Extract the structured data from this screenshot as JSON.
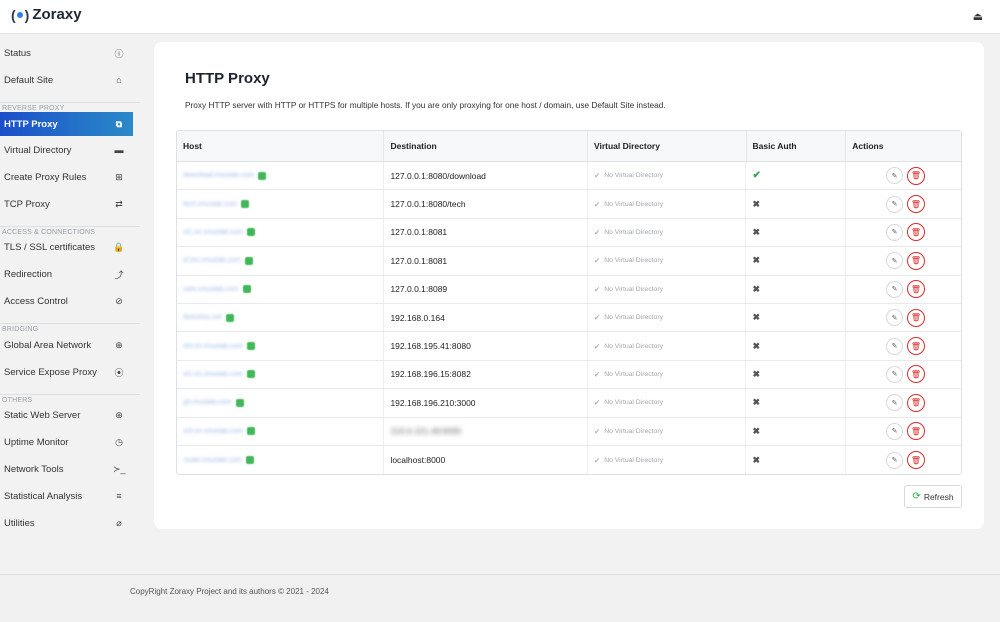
{
  "app": {
    "name": "Zoraxy",
    "logo_glyph": "(•)"
  },
  "header": {
    "logout_icon": "sign-out-icon"
  },
  "sidebar": {
    "items": [
      {
        "label": "Status",
        "icon": "ⓘ"
      },
      {
        "label": "Default Site",
        "icon": "⌂"
      },
      {
        "section": "REVERSE PROXY"
      },
      {
        "label": "HTTP Proxy",
        "icon": "⧉",
        "active": true
      },
      {
        "label": "Virtual Directory",
        "icon": "▬"
      },
      {
        "label": "Create Proxy Rules",
        "icon": "⊞"
      },
      {
        "label": "TCP Proxy",
        "icon": "⇄"
      },
      {
        "section": "ACCESS & CONNECTIONS"
      },
      {
        "label": "TLS / SSL certificates",
        "icon": "🔒"
      },
      {
        "label": "Redirection",
        "icon": "⤴"
      },
      {
        "label": "Access Control",
        "icon": "⊘"
      },
      {
        "section": "BRIDGING"
      },
      {
        "label": "Global Area Network",
        "icon": "⊕"
      },
      {
        "label": "Service Expose Proxy",
        "icon": "⦿"
      },
      {
        "section": "OTHERS"
      },
      {
        "label": "Static Web Server",
        "icon": "⊕"
      },
      {
        "label": "Uptime Monitor",
        "icon": "◷"
      },
      {
        "label": "Network Tools",
        "icon": "≻_"
      },
      {
        "label": "Statistical Analysis",
        "icon": "≡"
      },
      {
        "label": "Utilities",
        "icon": "⌀"
      }
    ]
  },
  "main": {
    "title": "HTTP Proxy",
    "description": "Proxy HTTP server with HTTP or HTTPS for multiple hosts. If you are only proxying for one host / domain, use Default Site instead.",
    "table": {
      "headers": [
        "Host",
        "Destination",
        "Virtual Directory",
        "Basic Auth",
        "Actions"
      ],
      "no_vdir_label": "No Virtual Directory",
      "rows": [
        {
          "host": "download.imuslab.com",
          "destination": "127.0.0.1:8080/download",
          "dest_blurred": false,
          "basic_auth": true
        },
        {
          "host": "tech.imuslab.com",
          "destination": "127.0.0.1:8080/tech",
          "dest_blurred": false,
          "basic_auth": false
        },
        {
          "host": "sf1.on.imuslab.com",
          "destination": "127.0.0.1:8081",
          "dest_blurred": false,
          "basic_auth": false
        },
        {
          "host": "sf.tes.imuslab.com",
          "destination": "127.0.0.1:8081",
          "dest_blurred": false,
          "basic_auth": false
        },
        {
          "host": "sshc.imuslab.com",
          "destination": "127.0.0.1:8089",
          "dest_blurred": false,
          "basic_auth": false
        },
        {
          "host": "Aireshos.net",
          "destination": "192.168.0.164",
          "dest_blurred": false,
          "basic_auth": false
        },
        {
          "host": "sf3.on.imuslab.com",
          "destination": "192.168.195.41:8080",
          "dest_blurred": false,
          "basic_auth": false
        },
        {
          "host": "sf2.on.imuslab.com",
          "destination": "192.168.196.15:8082",
          "dest_blurred": false,
          "basic_auth": false
        },
        {
          "host": "git.imuslab.com",
          "destination": "192.168.196.210:3000",
          "dest_blurred": false,
          "basic_auth": false
        },
        {
          "host": "sf3.on.imuslab.com",
          "destination": "216.6.101.48:9095",
          "dest_blurred": true,
          "basic_auth": false
        },
        {
          "host": "router.imuslab.com",
          "destination": "localhost:8000",
          "dest_blurred": false,
          "basic_auth": false
        }
      ]
    },
    "refresh_label": "Refresh"
  },
  "footer": {
    "text": "CopyRight Zoraxy Project and its authors © 2021 - 2024"
  },
  "colors": {
    "accent": "#1b4fc9",
    "success": "#2eab4f",
    "danger": "#d92c2c"
  }
}
